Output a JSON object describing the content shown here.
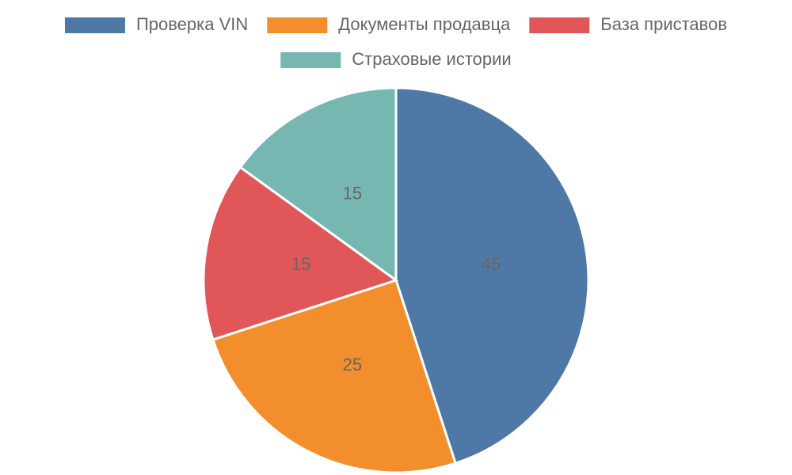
{
  "chart_data": {
    "type": "pie",
    "categories": [
      "Проверка VIN",
      "Документы продавца",
      "База приставов",
      "Страховые истории"
    ],
    "values": [
      45,
      25,
      15,
      15
    ],
    "colors": [
      "#4e79a7",
      "#f28e2b",
      "#e15759",
      "#76b7b2"
    ],
    "legend": "top"
  }
}
